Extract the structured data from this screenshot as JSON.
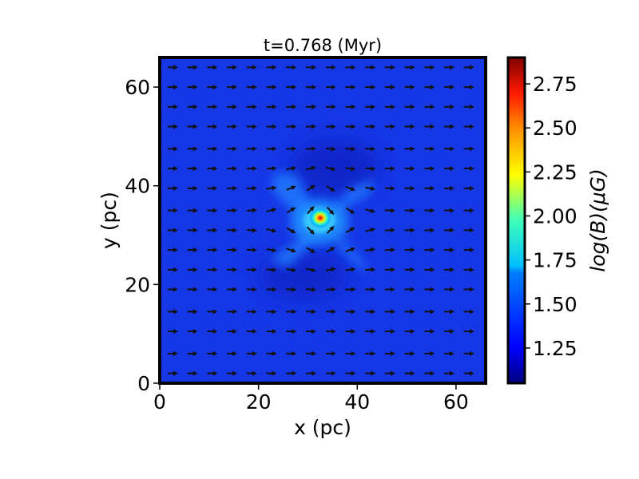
{
  "chart_data": {
    "type": "heatmap",
    "title": "t=0.768 (Myr)",
    "xlabel": "x (pc)",
    "ylabel": "y (pc)",
    "xlim": [
      0,
      66
    ],
    "ylim": [
      0,
      66
    ],
    "xticks": [
      0,
      20,
      40,
      60
    ],
    "yticks": [
      0,
      20,
      40,
      60
    ],
    "grid": false,
    "colormap": "jet",
    "colorbar": {
      "label": "log(B)(μG)",
      "range": [
        1.05,
        2.9
      ],
      "ticks": [
        1.25,
        1.5,
        1.75,
        2.0,
        2.25,
        2.5,
        2.75
      ],
      "tick_labels": [
        "1.25",
        "1.50",
        "1.75",
        "2.00",
        "2.25",
        "2.50",
        "2.75"
      ]
    },
    "field_summary": {
      "background_value": 1.3,
      "peak_value": 2.9,
      "peak_location_pc": [
        32.5,
        33.5
      ],
      "enhanced_region": "X-shaped structure centered near (32, 33) pc spanning roughly x 23–45 pc, y 23–44 pc"
    },
    "vector_field": {
      "description": "magnetic field direction arrows, mostly pointing in +x",
      "grid_x_pc": [
        2.5,
        6.5,
        10.5,
        14.5,
        18.5,
        22.5,
        26.5,
        30.5,
        34.5,
        38.5,
        42.5,
        46.5,
        50.5,
        54.5,
        58.5,
        62.5
      ],
      "grid_y_pc": [
        2,
        6,
        10.5,
        14.5,
        19,
        23,
        27,
        31,
        35,
        39.5,
        43.5,
        47.5,
        52,
        56,
        60,
        64
      ],
      "dominant_direction": "+x"
    }
  },
  "colors": {
    "background_field": "#1637e6",
    "frame": "#000000"
  }
}
